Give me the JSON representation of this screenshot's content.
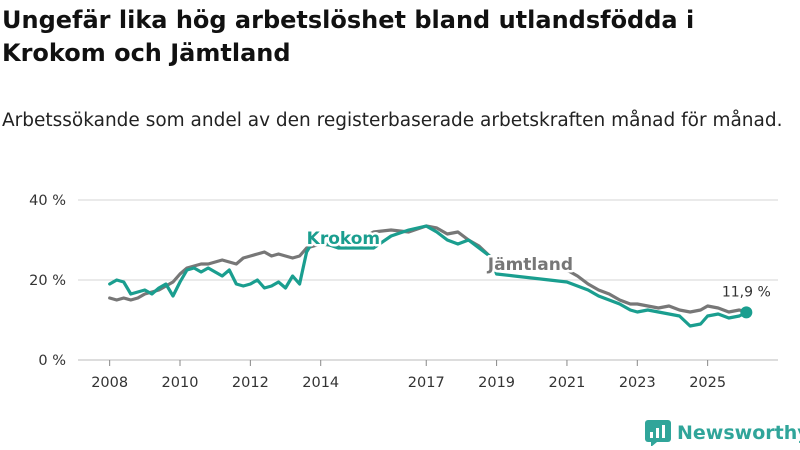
{
  "header": {
    "title": "Ungefär lika hög arbetslöshet bland utlandsfödda i Krokom och Jämtland",
    "subtitle": "Arbetssökande som andel av den registerbaserade arbetskraften månad för månad."
  },
  "brand": {
    "name": "Newsworthy"
  },
  "colors": {
    "krokom": "#1a9e8f",
    "jamtland": "#777777",
    "grid": "#d6d6d6",
    "axis": "#555555"
  },
  "chart_data": {
    "type": "line",
    "title": "Ungefär lika hög arbetslöshet bland utlandsfödda i Krokom och Jämtland",
    "xlabel": "",
    "ylabel": "",
    "xlim": [
      2008,
      2026.5
    ],
    "ylim": [
      0,
      40
    ],
    "y_ticks": [
      0,
      20,
      40
    ],
    "y_tick_labels": [
      "0 %",
      "20 %",
      "40 %"
    ],
    "x_ticks": [
      2008,
      2010,
      2012,
      2014,
      2017,
      2019,
      2021,
      2023,
      2025
    ],
    "x_tick_labels": [
      "2008",
      "2010",
      "2012",
      "2014",
      "2017",
      "2019",
      "2021",
      "2023",
      "2025"
    ],
    "last_value_label": "11,9 %",
    "last_value": {
      "x": 2026.1,
      "y": 11.9
    },
    "series": [
      {
        "name": "Jämtland",
        "label": "Jämtland",
        "x": [
          2008.0,
          2008.2,
          2008.4,
          2008.6,
          2008.8,
          2009.0,
          2009.2,
          2009.4,
          2009.6,
          2009.8,
          2010.0,
          2010.2,
          2010.4,
          2010.6,
          2010.8,
          2011.0,
          2011.2,
          2011.4,
          2011.6,
          2011.8,
          2012.0,
          2012.2,
          2012.4,
          2012.6,
          2012.8,
          2013.0,
          2013.2,
          2013.4,
          2013.6,
          2013.8,
          2014.0,
          2014.5,
          2015.0,
          2015.5,
          2016.0,
          2016.5,
          2017.0,
          2017.3,
          2017.6,
          2017.9,
          2018.2,
          2018.5,
          2018.8,
          2019.0,
          2019.5,
          2020.0,
          2020.5,
          2021.0,
          2021.3,
          2021.6,
          2021.9,
          2022.2,
          2022.5,
          2022.8,
          2023.0,
          2023.3,
          2023.6,
          2023.9,
          2024.2,
          2024.5,
          2024.8,
          2025.0,
          2025.3,
          2025.6,
          2025.9,
          2026.1
        ],
        "y": [
          15.5,
          15.0,
          15.5,
          15.0,
          15.5,
          16.5,
          17.0,
          17.5,
          18.5,
          19.5,
          21.5,
          23.0,
          23.5,
          24.0,
          24.0,
          24.5,
          25.0,
          24.5,
          24.0,
          25.5,
          26.0,
          26.5,
          27.0,
          26.0,
          26.5,
          26.0,
          25.5,
          26.0,
          28.0,
          28.5,
          29.0,
          28.5,
          29.5,
          32.0,
          32.5,
          32.0,
          33.5,
          33.0,
          31.5,
          32.0,
          30.0,
          28.5,
          26.0,
          25.0,
          24.5,
          24.0,
          23.0,
          22.5,
          21.0,
          19.0,
          17.5,
          16.5,
          15.0,
          14.0,
          14.0,
          13.5,
          13.0,
          13.5,
          12.5,
          12.0,
          12.5,
          13.5,
          13.0,
          12.0,
          12.5,
          12.0
        ]
      },
      {
        "name": "Krokom",
        "label": "Krokom",
        "x": [
          2008.0,
          2008.2,
          2008.4,
          2008.6,
          2008.8,
          2009.0,
          2009.2,
          2009.4,
          2009.6,
          2009.8,
          2010.0,
          2010.2,
          2010.4,
          2010.6,
          2010.8,
          2011.0,
          2011.2,
          2011.4,
          2011.6,
          2011.8,
          2012.0,
          2012.2,
          2012.4,
          2012.6,
          2012.8,
          2013.0,
          2013.2,
          2013.4,
          2013.6,
          2013.8,
          2014.0,
          2014.5,
          2015.0,
          2015.5,
          2016.0,
          2016.5,
          2017.0,
          2017.3,
          2017.6,
          2017.9,
          2018.2,
          2018.5,
          2018.8,
          2019.0,
          2019.5,
          2020.0,
          2020.5,
          2021.0,
          2021.3,
          2021.6,
          2021.9,
          2022.2,
          2022.5,
          2022.8,
          2023.0,
          2023.3,
          2023.6,
          2023.9,
          2024.2,
          2024.5,
          2024.8,
          2025.0,
          2025.3,
          2025.6,
          2025.9,
          2026.1
        ],
        "y": [
          19.0,
          20.0,
          19.5,
          16.5,
          17.0,
          17.5,
          16.5,
          18.0,
          19.0,
          16.0,
          19.5,
          22.5,
          23.0,
          22.0,
          23.0,
          22.0,
          21.0,
          22.5,
          19.0,
          18.5,
          19.0,
          20.0,
          18.0,
          18.5,
          19.5,
          18.0,
          21.0,
          19.0,
          27.0,
          30.0,
          29.5,
          28.0,
          28.0,
          28.0,
          31.0,
          32.5,
          33.5,
          32.0,
          30.0,
          29.0,
          30.0,
          28.0,
          26.0,
          21.5,
          21.0,
          20.5,
          20.0,
          19.5,
          18.5,
          17.5,
          16.0,
          15.0,
          14.0,
          12.5,
          12.0,
          12.5,
          12.0,
          11.5,
          11.0,
          8.5,
          9.0,
          11.0,
          11.5,
          10.5,
          11.0,
          11.9
        ]
      }
    ]
  }
}
